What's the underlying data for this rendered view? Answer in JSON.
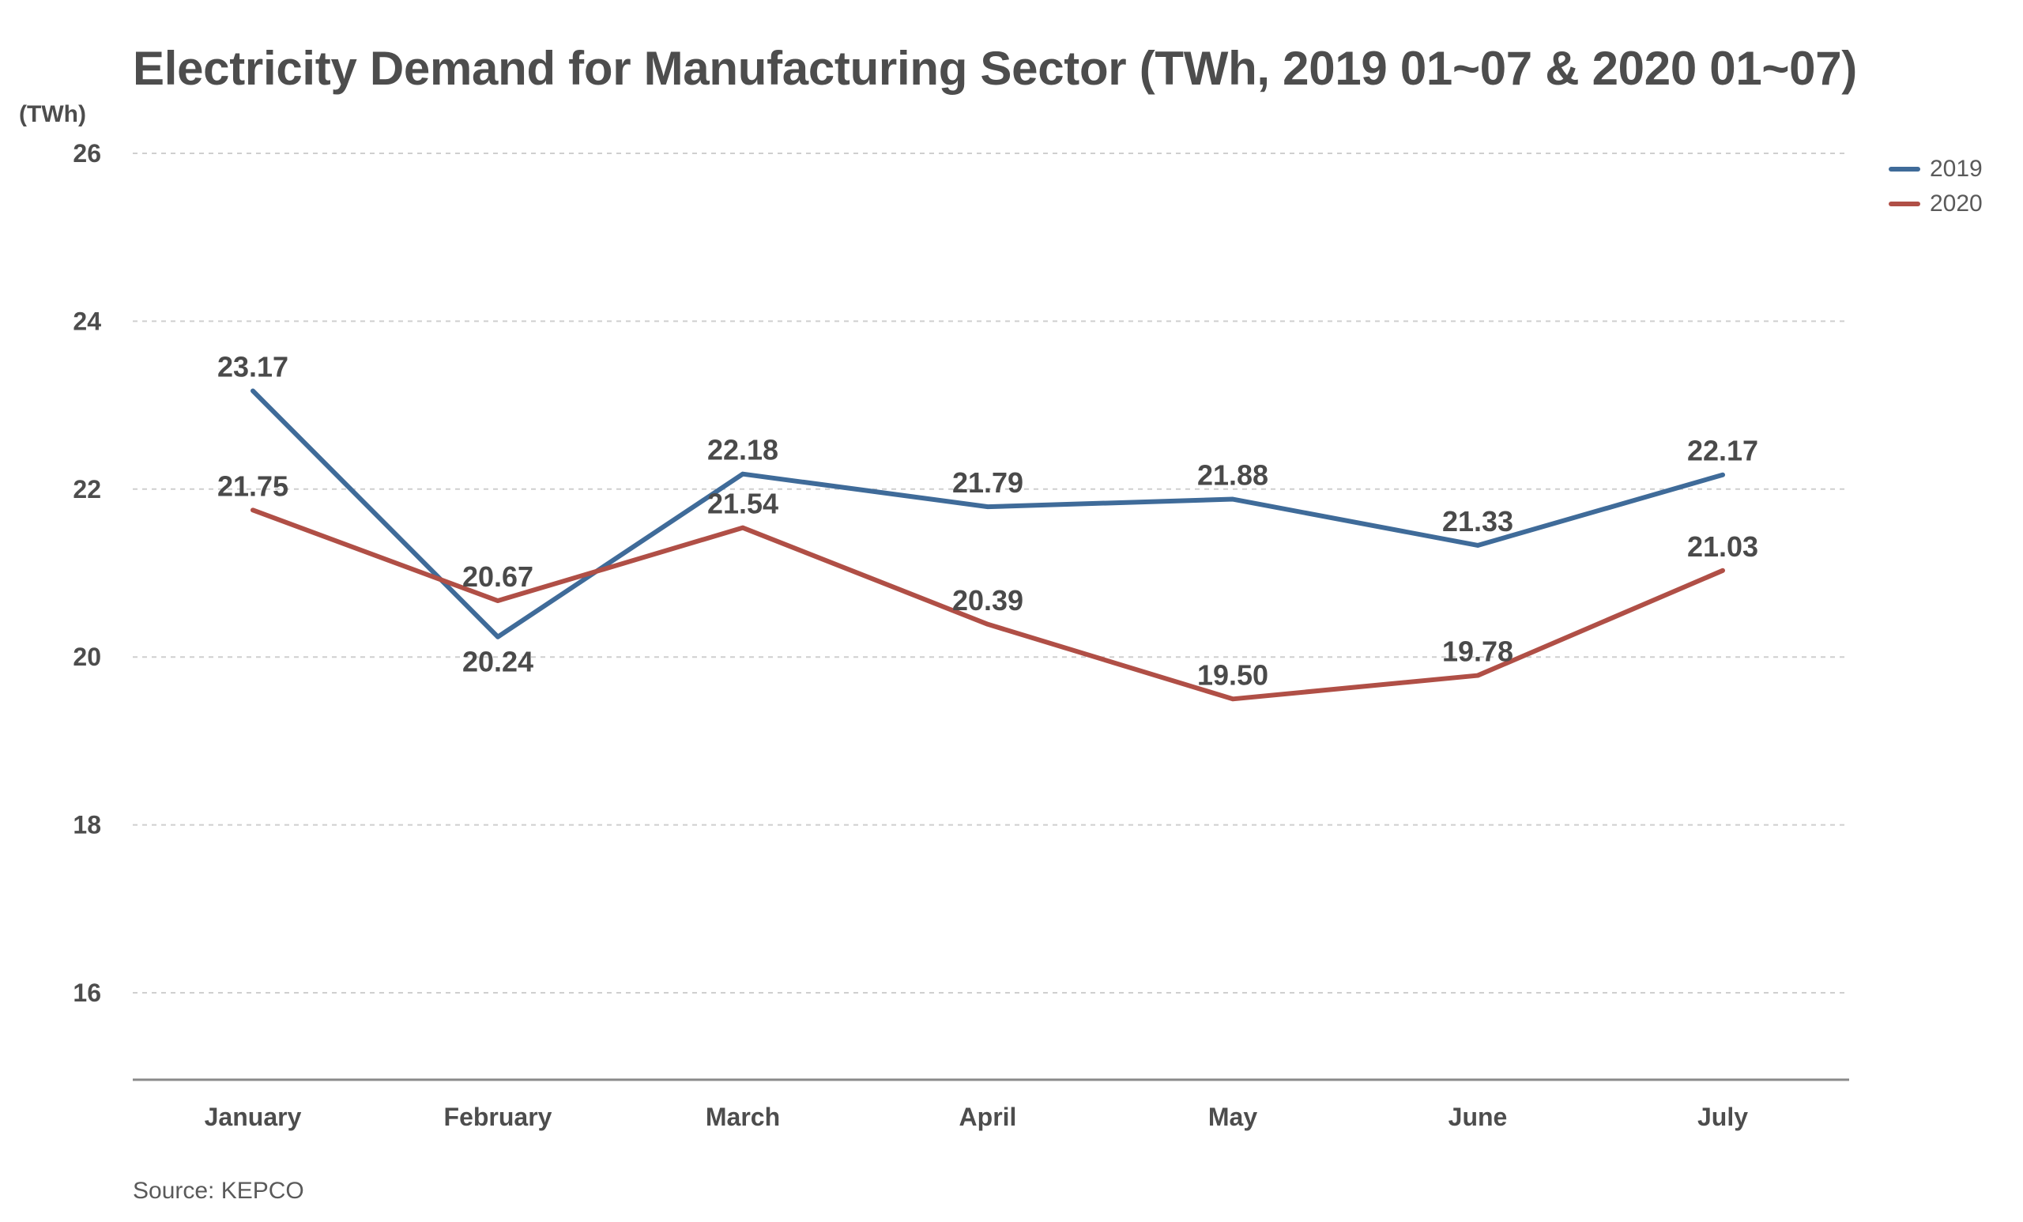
{
  "chart_data": {
    "type": "line",
    "title": "Electricity Demand for Manufacturing Sector (TWh, 2019 01~07 & 2020 01~07)",
    "ylabel": "(TWh)",
    "xlabel": "",
    "categories": [
      "January",
      "February",
      "March",
      "April",
      "May",
      "June",
      "July"
    ],
    "ylim": [
      15,
      26
    ],
    "yticks": [
      16,
      18,
      20,
      22,
      24,
      26
    ],
    "grid": true,
    "legend_position": "top-right",
    "series": [
      {
        "name": "2019",
        "color": "#3f6b99",
        "values": [
          23.17,
          20.24,
          22.18,
          21.79,
          21.88,
          21.33,
          22.17
        ],
        "labels": [
          "23.17",
          "20.24",
          "22.18",
          "21.79",
          "21.88",
          "21.33",
          "22.17"
        ],
        "label_positions": [
          "above",
          "below",
          "above",
          "above",
          "above",
          "above",
          "above"
        ]
      },
      {
        "name": "2020",
        "color": "#b04f46",
        "values": [
          21.75,
          20.67,
          21.54,
          20.39,
          19.5,
          19.78,
          21.03
        ],
        "labels": [
          "21.75",
          "20.67",
          "21.54",
          "20.39",
          "19.50",
          "19.78",
          "21.03"
        ],
        "label_positions": [
          "above",
          "above",
          "above",
          "above",
          "above",
          "above",
          "above"
        ]
      }
    ]
  },
  "source": "Source: KEPCO"
}
